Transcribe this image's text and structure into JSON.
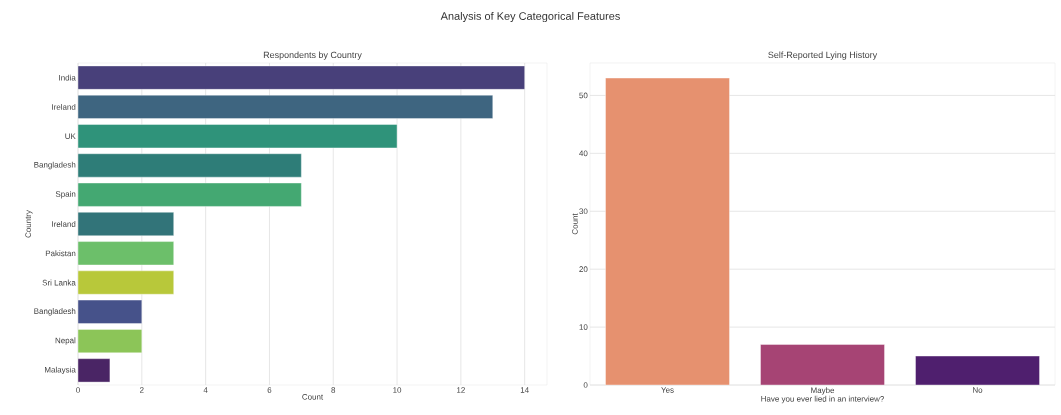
{
  "chart_data": [
    {
      "type": "bar",
      "orientation": "horizontal",
      "title": "Respondents by Country",
      "xlabel": "Count",
      "ylabel": "Country",
      "annotations": [
        "Analysis of Key Categorical Features"
      ],
      "categories": [
        "India",
        "Ireland",
        "UK",
        "Bangladesh",
        "Spain",
        "Ireland",
        "Pakistan",
        "Sri Lanka",
        "Bangladesh",
        "Nepal",
        "Malaysia"
      ],
      "values": [
        14,
        13,
        10,
        7,
        7,
        3,
        3,
        3,
        2,
        2,
        1
      ],
      "colors": [
        "#48407a",
        "#3e6580",
        "#2f937a",
        "#2e7d78",
        "#44a872",
        "#327479",
        "#6cbf6a",
        "#b8c83a",
        "#46528a",
        "#8cc558",
        "#4a2565"
      ],
      "xlim": [
        0,
        14.7
      ],
      "xticks": [
        0,
        2,
        4,
        6,
        8,
        10,
        12,
        14
      ],
      "grid": "x"
    },
    {
      "type": "bar",
      "title": "Self-Reported Lying History",
      "xlabel": "Have you ever lied in an interview?",
      "ylabel": "Count",
      "categories": [
        "Yes",
        "Maybe",
        "No"
      ],
      "values": [
        53,
        7,
        5
      ],
      "colors": [
        "#e6916f",
        "#a64474",
        "#4f1f6e"
      ],
      "ylim": [
        0,
        55.6
      ],
      "yticks": [
        0,
        10,
        20,
        30,
        40,
        50
      ],
      "grid": "y"
    }
  ]
}
